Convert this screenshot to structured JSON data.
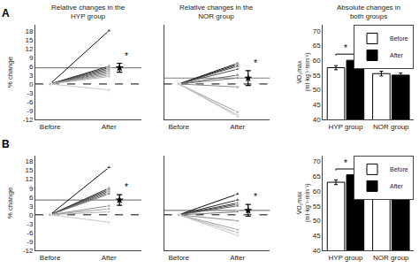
{
  "chart_data": [
    {
      "type": "line",
      "panel_label": "A",
      "title": "Relative changes in the\nHYP group",
      "categories": [
        "Before",
        "After"
      ],
      "series": [
        {
          "color": "#111111",
          "values": [
            0,
            18
          ]
        },
        {
          "color": "#2a2a2a",
          "values": [
            0,
            6
          ]
        },
        {
          "color": "#3c3c3c",
          "values": [
            0,
            5.5
          ]
        },
        {
          "color": "#505050",
          "values": [
            0,
            5
          ]
        },
        {
          "color": "#646464",
          "values": [
            0,
            4.5
          ]
        },
        {
          "color": "#787878",
          "values": [
            0,
            4
          ]
        },
        {
          "color": "#8c8c8c",
          "values": [
            0,
            3.5
          ]
        },
        {
          "color": "#a0a0a0",
          "values": [
            0,
            3
          ]
        },
        {
          "color": "#b4b4b4",
          "values": [
            0,
            2.5
          ]
        },
        {
          "color": "#c8c8c8",
          "values": [
            0,
            -2
          ]
        }
      ],
      "mean": 5.5,
      "mean_error": 1.5,
      "reference_line": 0,
      "annotations": [
        {
          "text": "*"
        }
      ],
      "ylim": [
        -12,
        20
      ],
      "yticks": [
        -12,
        -9,
        -6,
        -3,
        0,
        3,
        6,
        9,
        12,
        15,
        18
      ],
      "ylabel": "% change",
      "grid": false
    },
    {
      "type": "line",
      "title": "Relative changes in the\nNOR group",
      "categories": [
        "Before",
        "After"
      ],
      "series": [
        {
          "color": "#111111",
          "values": [
            0,
            7
          ]
        },
        {
          "color": "#2a2a2a",
          "values": [
            0,
            6.5
          ]
        },
        {
          "color": "#3c3c3c",
          "values": [
            0,
            6
          ]
        },
        {
          "color": "#505050",
          "values": [
            0,
            5
          ]
        },
        {
          "color": "#646464",
          "values": [
            0,
            3
          ]
        },
        {
          "color": "#787878",
          "values": [
            0,
            2
          ]
        },
        {
          "color": "#8c8c8c",
          "values": [
            0,
            -1
          ]
        },
        {
          "color": "#a0a0a0",
          "values": [
            0,
            -9.5
          ]
        },
        {
          "color": "#b4b4b4",
          "values": [
            0,
            -10.5
          ]
        },
        {
          "color": "#c8c8c8",
          "values": [
            0,
            -11
          ]
        }
      ],
      "mean": 2.0,
      "mean_error": 2.5,
      "reference_line": 0,
      "annotations": [
        {
          "text": "*"
        }
      ],
      "ylim": [
        -12,
        20
      ],
      "yticks": [
        -12,
        -9,
        -6,
        -3,
        0,
        3,
        6,
        9,
        12,
        15,
        18
      ],
      "tick_labels": "x",
      "grid": false
    },
    {
      "type": "bar",
      "title": "Absolute changes in\nboth groups",
      "categories": [
        "HYP group",
        "NOR group"
      ],
      "series": [
        {
          "name": "Before",
          "color": "white",
          "values": [
            57.5,
            55.5
          ],
          "errors": [
            0.7,
            0.8
          ]
        },
        {
          "name": "After",
          "color": "black",
          "values": [
            60.0,
            55.0
          ],
          "errors": [
            0.8,
            0.7
          ]
        }
      ],
      "annotations": [
        {
          "text": "*",
          "category": "HYP group"
        }
      ],
      "ylim": [
        40,
        72
      ],
      "yticks": [
        40,
        45,
        50,
        55,
        60,
        65,
        70
      ],
      "ylabel": "V̇O₂max\n(ml·kg⁻¹·min⁻¹)",
      "legend": "upper right",
      "grid": false
    },
    {
      "type": "line",
      "panel_label": "B",
      "categories": [
        "Before",
        "After"
      ],
      "series": [
        {
          "color": "#111111",
          "values": [
            0,
            16
          ]
        },
        {
          "color": "#2a2a2a",
          "values": [
            0,
            9
          ]
        },
        {
          "color": "#3c3c3c",
          "values": [
            0,
            8.5
          ]
        },
        {
          "color": "#505050",
          "values": [
            0,
            8
          ]
        },
        {
          "color": "#646464",
          "values": [
            0,
            7.5
          ]
        },
        {
          "color": "#787878",
          "values": [
            0,
            7
          ]
        },
        {
          "color": "#8c8c8c",
          "values": [
            0,
            3
          ]
        },
        {
          "color": "#a0a0a0",
          "values": [
            0,
            2
          ]
        },
        {
          "color": "#b4b4b4",
          "values": [
            0,
            1
          ]
        },
        {
          "color": "#c8c8c8",
          "values": [
            0,
            -2.5
          ]
        }
      ],
      "mean": 5.0,
      "mean_error": 1.8,
      "reference_line": 0,
      "annotations": [
        {
          "text": "*"
        }
      ],
      "ylim": [
        -12,
        20
      ],
      "yticks": [
        -12,
        -9,
        -6,
        -3,
        0,
        3,
        6,
        9,
        12,
        15,
        18
      ],
      "ylabel": "% change",
      "grid": false
    },
    {
      "type": "line",
      "categories": [
        "Before",
        "After"
      ],
      "series": [
        {
          "color": "#111111",
          "values": [
            0,
            7
          ]
        },
        {
          "color": "#2a2a2a",
          "values": [
            0,
            5
          ]
        },
        {
          "color": "#3c3c3c",
          "values": [
            0,
            4
          ]
        },
        {
          "color": "#505050",
          "values": [
            0,
            3.5
          ]
        },
        {
          "color": "#646464",
          "values": [
            0,
            3
          ]
        },
        {
          "color": "#787878",
          "values": [
            0,
            1
          ]
        },
        {
          "color": "#8c8c8c",
          "values": [
            0,
            -2
          ]
        },
        {
          "color": "#a0a0a0",
          "values": [
            0,
            -5
          ]
        },
        {
          "color": "#b4b4b4",
          "values": [
            0,
            -6
          ]
        },
        {
          "color": "#c8c8c8",
          "values": [
            0,
            -7
          ]
        }
      ],
      "mean": 1.5,
      "mean_error": 2.0,
      "reference_line": 0,
      "annotations": [
        {
          "text": "*"
        }
      ],
      "ylim": [
        -12,
        20
      ],
      "yticks": [
        -12,
        -9,
        -6,
        -3,
        0,
        3,
        6,
        9,
        12,
        15,
        18
      ],
      "tick_labels": "x",
      "grid": false
    },
    {
      "type": "bar",
      "categories": [
        "HYP group",
        "NOR group"
      ],
      "series": [
        {
          "name": "Before",
          "color": "white",
          "values": [
            63.0,
            60.0
          ],
          "errors": [
            0.8,
            0.8
          ]
        },
        {
          "name": "After",
          "color": "black",
          "values": [
            65.5,
            60.5
          ],
          "errors": [
            0.7,
            0.7
          ]
        }
      ],
      "annotations": [
        {
          "text": "*",
          "category": "HYP group"
        }
      ],
      "ylim": [
        40,
        72
      ],
      "yticks": [
        40,
        45,
        50,
        55,
        60,
        65,
        70
      ],
      "ylabel": "V̇O₂max\n(ml·kg⁻¹·min⁻¹)",
      "legend": "upper right",
      "grid": false
    }
  ]
}
